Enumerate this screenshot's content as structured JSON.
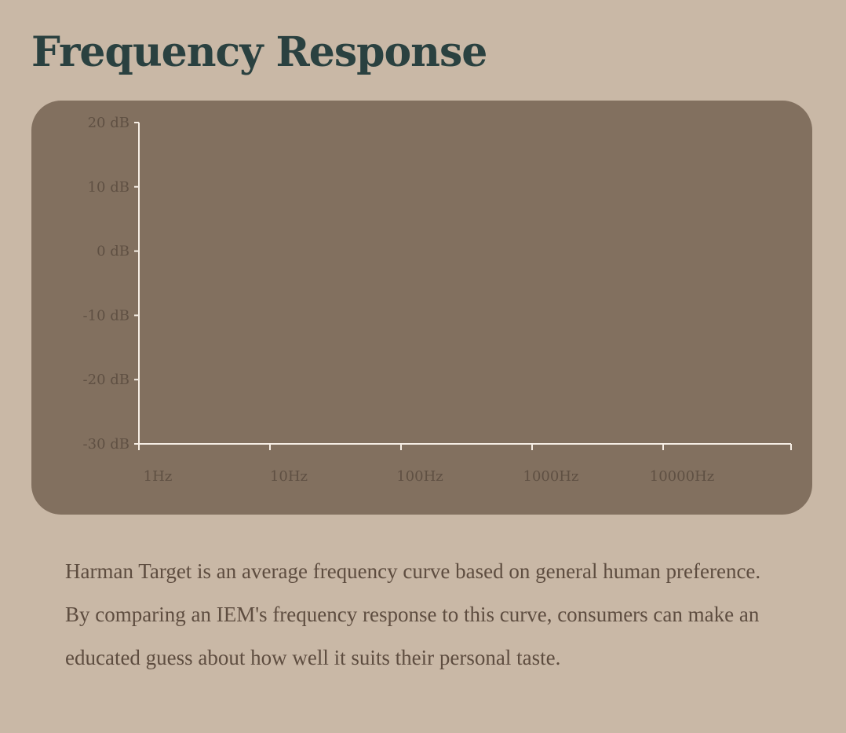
{
  "page": {
    "title": "Frequency Response",
    "description": "Harman Target is an average frequency curve based on general human preference. By comparing an IEM's frequency response to this curve, consumers can make an educated guess about how well it suits their personal taste."
  },
  "colors": {
    "background": "#c9b8a6",
    "card": "#82705f",
    "axis": "#f6eee5",
    "title": "#2a4140",
    "text": "#5e4d40"
  },
  "chart_data": {
    "type": "line",
    "title": "",
    "xlabel": "",
    "ylabel": "",
    "xscale": "log",
    "xlim": [
      1,
      100000
    ],
    "ylim": [
      -30,
      20
    ],
    "x_ticks": [
      {
        "value": 1,
        "label": "1Hz"
      },
      {
        "value": 10,
        "label": "10Hz"
      },
      {
        "value": 100,
        "label": "100Hz"
      },
      {
        "value": 1000,
        "label": "1000Hz"
      },
      {
        "value": 10000,
        "label": "10000Hz"
      }
    ],
    "y_ticks": [
      {
        "value": 20,
        "label": "20 dB"
      },
      {
        "value": 10,
        "label": "10 dB"
      },
      {
        "value": 0,
        "label": "0 dB"
      },
      {
        "value": -10,
        "label": "-10 dB"
      },
      {
        "value": -20,
        "label": "-20 dB"
      },
      {
        "value": -30,
        "label": "-30 dB"
      }
    ],
    "series": [],
    "grid": false
  }
}
